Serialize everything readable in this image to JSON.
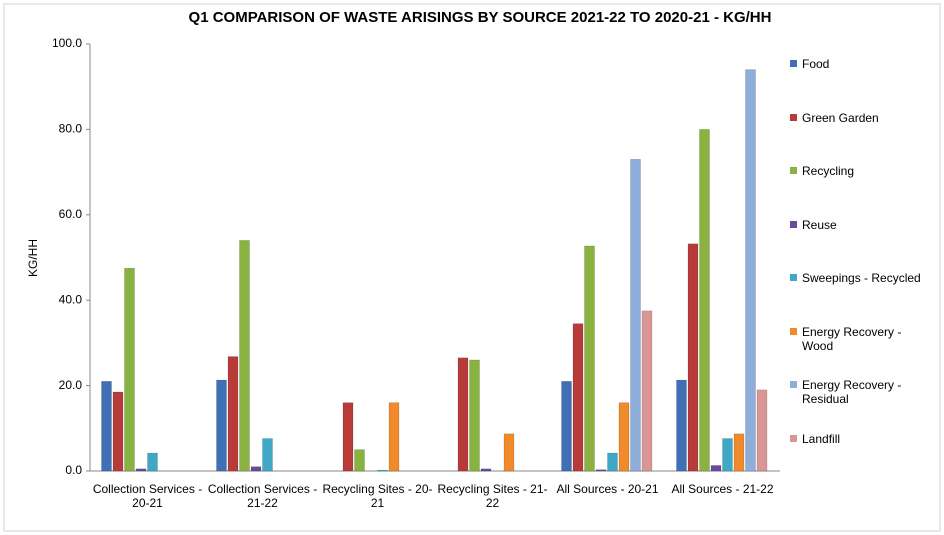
{
  "chart_data": {
    "type": "bar",
    "title": "Q1 COMPARISON OF WASTE ARISINGS BY SOURCE 2021-22 TO 2020-21 - KG/HH",
    "y_label": "KG/HH",
    "categories": [
      "Collection Services - 20-21",
      "Collection Services - 21-22",
      "Recycling Sites - 20-21",
      "Recycling Sites - 21-22",
      "All Sources - 20-21",
      "All Sources - 21-22"
    ],
    "series": [
      {
        "name": "Food",
        "color": "#3f6fb5",
        "values": [
          21,
          21.3,
          0,
          0,
          21,
          21.3
        ]
      },
      {
        "name": "Green Garden",
        "color": "#b83b3a",
        "values": [
          18.5,
          26.8,
          16,
          26.5,
          34.5,
          53.2
        ]
      },
      {
        "name": "Recycling",
        "color": "#8ab241",
        "values": [
          47.5,
          54,
          5,
          26,
          52.7,
          80
        ]
      },
      {
        "name": "Reuse",
        "color": "#6a4a9a",
        "values": [
          0.5,
          1,
          0,
          0.5,
          0.3,
          1.3
        ]
      },
      {
        "name": "Sweepings - Recycled",
        "color": "#3fa8c4",
        "values": [
          4.2,
          7.6,
          0.2,
          0,
          4.2,
          7.6
        ]
      },
      {
        "name": "Energy Recovery - Wood",
        "color": "#f08a2a",
        "values": [
          0,
          0,
          16,
          8.7,
          16,
          8.7
        ]
      },
      {
        "name": "Energy Recovery - Residual",
        "color": "#8fadd9",
        "values": [
          0,
          0,
          0,
          0,
          73,
          94
        ]
      },
      {
        "name": "Landfill",
        "color": "#d99694",
        "values": [
          0,
          0,
          0,
          0,
          37.5,
          19
        ]
      }
    ],
    "ylim": [
      0,
      100
    ],
    "yticks": [
      {
        "value": 0,
        "label": "0.0"
      },
      {
        "value": 20,
        "label": "20.0"
      },
      {
        "value": 40,
        "label": "40.0"
      },
      {
        "value": 60,
        "label": "60.0"
      },
      {
        "value": 80,
        "label": "80.0"
      },
      {
        "value": 100,
        "label": "100.0"
      }
    ],
    "grid": false,
    "legend": "right"
  }
}
